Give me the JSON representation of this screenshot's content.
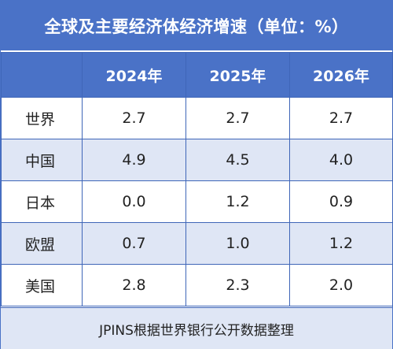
{
  "title": "全球及主要经济体经济增速（单位：%）",
  "footer": "JPINS根据世界银行公开数据整理",
  "colors": {
    "header_bg": "#4a72c7",
    "header_text": "#ffffff",
    "stripe": "#dfe6f5",
    "border": "#3f66b8"
  },
  "chart_data": {
    "type": "table",
    "title": "全球及主要经济体经济增速（单位：%）",
    "columns": [
      "",
      "2024年",
      "2025年",
      "2026年"
    ],
    "rows": [
      {
        "label": "世界",
        "values": [
          "2.7",
          "2.7",
          "2.7"
        ]
      },
      {
        "label": "中国",
        "values": [
          "4.9",
          "4.5",
          "4.0"
        ]
      },
      {
        "label": "日本",
        "values": [
          "0.0",
          "1.2",
          "0.9"
        ]
      },
      {
        "label": "欧盟",
        "values": [
          "0.7",
          "1.0",
          "1.2"
        ]
      },
      {
        "label": "美国",
        "values": [
          "2.8",
          "2.3",
          "2.0"
        ]
      }
    ],
    "note": "JPINS根据世界银行公开数据整理"
  }
}
